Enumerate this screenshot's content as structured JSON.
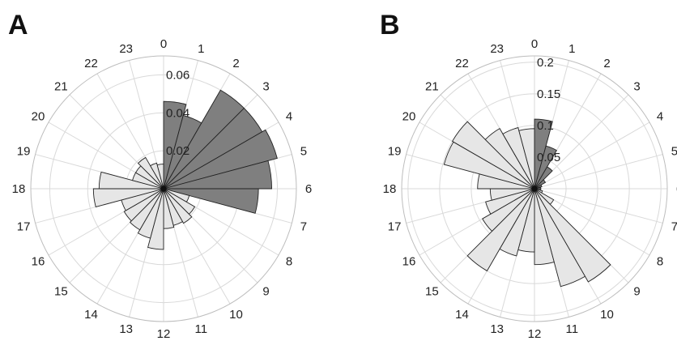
{
  "chart_data": [
    {
      "type": "polar-histogram",
      "panel_label": "A",
      "categories": [
        "0",
        "1",
        "2",
        "3",
        "4",
        "5",
        "6",
        "7",
        "8",
        "9",
        "10",
        "11",
        "12",
        "13",
        "14",
        "15",
        "16",
        "17",
        "18",
        "19",
        "20",
        "21",
        "22",
        "23"
      ],
      "r_ticks": [
        "0.02",
        "0.04",
        "0.06"
      ],
      "rlim": [
        0,
        0.07
      ],
      "grid": true,
      "series": [
        {
          "color": "#7f7f7f",
          "values": [
            0.046,
            0.04,
            0.06,
            0.06,
            0.062,
            0.057,
            0.05,
            0,
            0,
            0,
            0,
            0,
            0,
            0,
            0,
            0,
            0,
            0,
            0,
            0,
            0,
            0,
            0,
            0
          ]
        },
        {
          "color": "#e6e6e6",
          "values": [
            0,
            0,
            0,
            0,
            0,
            0,
            0,
            0.014,
            0.019,
            0.021,
            0.02,
            0.021,
            0.032,
            0.027,
            0.025,
            0.024,
            0.023,
            0.037,
            0.034,
            0.017,
            0.017,
            0.019,
            0.014,
            0.013
          ]
        }
      ]
    },
    {
      "type": "polar-histogram",
      "panel_label": "B",
      "categories": [
        "0",
        "1",
        "2",
        "3",
        "4",
        "5",
        "6",
        "7",
        "8",
        "9",
        "10",
        "11",
        "12",
        "13",
        "14",
        "15",
        "16",
        "17",
        "18",
        "19",
        "20",
        "21",
        "22",
        "23"
      ],
      "r_ticks": [
        "0.05",
        "0.1",
        "0.15",
        "0.2"
      ],
      "rlim": [
        0,
        0.21
      ],
      "grid": true,
      "series": [
        {
          "color": "#7f7f7f",
          "values": [
            0.11,
            0.07,
            0.04,
            0.02,
            0.012,
            0.01,
            0.01,
            0,
            0,
            0,
            0,
            0,
            0,
            0,
            0,
            0,
            0,
            0,
            0,
            0,
            0,
            0,
            0,
            0
          ]
        },
        {
          "color": "#e6e6e6",
          "values": [
            0,
            0,
            0,
            0,
            0,
            0,
            0,
            0.013,
            0.035,
            0.17,
            0.16,
            0.12,
            0.1,
            0.11,
            0.15,
            0.095,
            0.08,
            0.07,
            0.09,
            0.148,
            0.15,
            0.11,
            0.1,
            0.095
          ]
        }
      ]
    }
  ]
}
